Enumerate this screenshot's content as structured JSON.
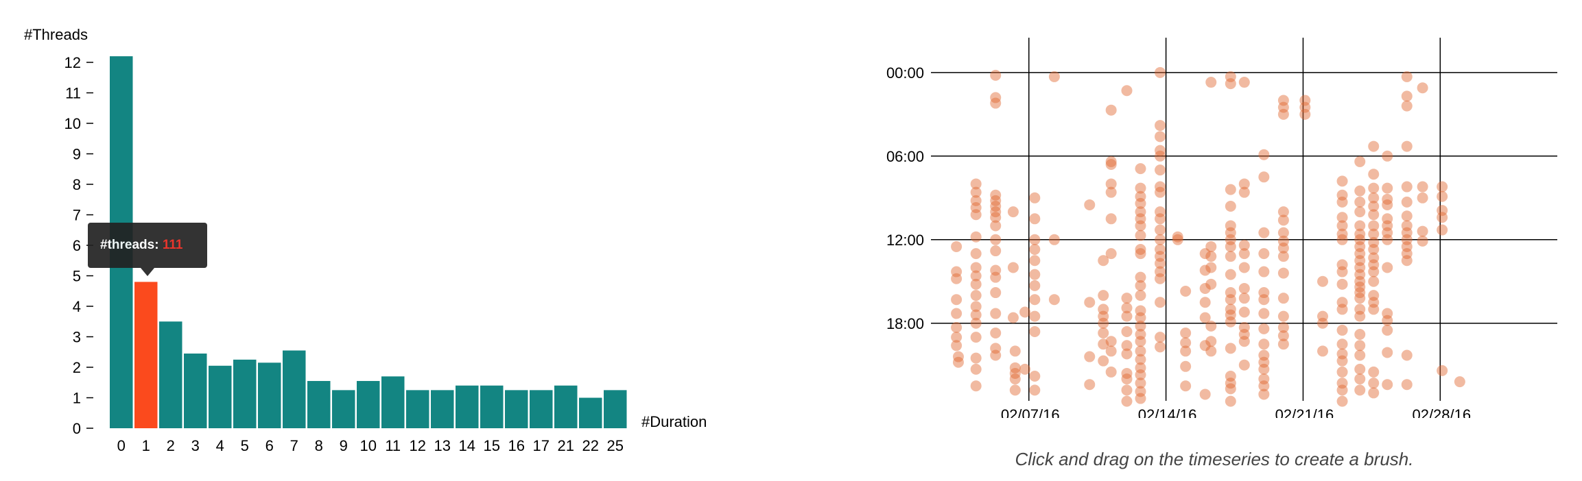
{
  "chart_data": [
    {
      "type": "bar",
      "ylabel": "#Threads",
      "xlabel": "#Duration",
      "categories": [
        "0",
        "1",
        "2",
        "3",
        "4",
        "5",
        "6",
        "7",
        "8",
        "9",
        "10",
        "11",
        "12",
        "13",
        "14",
        "15",
        "16",
        "17",
        "21",
        "22",
        "25"
      ],
      "values": [
        12.2,
        4.8,
        3.5,
        2.45,
        2.05,
        2.25,
        2.15,
        2.55,
        1.55,
        1.25,
        1.55,
        1.7,
        1.25,
        1.25,
        1.4,
        1.4,
        1.25,
        1.25,
        1.4,
        1.0,
        1.25
      ],
      "ylim": [
        0,
        12.5
      ],
      "yticks": [
        "0",
        "1",
        "2",
        "3",
        "4",
        "5",
        "6",
        "7",
        "8",
        "9",
        "10",
        "11",
        "12"
      ],
      "highlight_index": 1,
      "colors": {
        "bar": "#138582",
        "highlight": "#fb4a1d"
      }
    },
    {
      "type": "scatter",
      "xlabel": "",
      "ylabel": "",
      "x_tick_labels": [
        "02/07/16",
        "02/14/16",
        "02/21/16",
        "02/28/16"
      ],
      "y_tick_labels": [
        "00:00",
        "06:00",
        "12:00",
        "18:00"
      ],
      "point_color": "#e0662e",
      "day_range": [
        2,
        30
      ],
      "hour_range": [
        -2.5,
        24
      ],
      "points": [
        [
          3.3,
          12.5
        ],
        [
          3.3,
          14.3
        ],
        [
          3.3,
          14.8
        ],
        [
          3.3,
          16.3
        ],
        [
          3.3,
          17.3
        ],
        [
          3.3,
          18.3
        ],
        [
          3.3,
          19.0
        ],
        [
          3.3,
          19.6
        ],
        [
          3.4,
          20.4
        ],
        [
          3.4,
          20.8
        ],
        [
          4.3,
          8.0
        ],
        [
          4.3,
          8.6
        ],
        [
          4.3,
          9.2
        ],
        [
          4.3,
          9.7
        ],
        [
          4.3,
          10.2
        ],
        [
          4.3,
          11.8
        ],
        [
          4.3,
          13.0
        ],
        [
          4.3,
          14.0
        ],
        [
          4.3,
          14.6
        ],
        [
          4.3,
          15.2
        ],
        [
          4.3,
          16.0
        ],
        [
          4.3,
          16.8
        ],
        [
          4.3,
          17.4
        ],
        [
          4.3,
          18.0
        ],
        [
          4.3,
          19.0
        ],
        [
          4.3,
          20.5
        ],
        [
          4.3,
          21.3
        ],
        [
          4.3,
          22.5
        ],
        [
          5.3,
          0.2
        ],
        [
          5.3,
          1.8
        ],
        [
          5.3,
          2.2
        ],
        [
          5.3,
          8.8
        ],
        [
          5.3,
          9.2
        ],
        [
          5.3,
          9.6
        ],
        [
          5.3,
          10.0
        ],
        [
          5.3,
          10.4
        ],
        [
          5.3,
          11.0
        ],
        [
          5.3,
          12.0
        ],
        [
          5.3,
          12.8
        ],
        [
          5.3,
          14.2
        ],
        [
          5.3,
          14.7
        ],
        [
          5.3,
          15.8
        ],
        [
          5.3,
          17.3
        ],
        [
          5.3,
          18.7
        ],
        [
          5.3,
          19.8
        ],
        [
          5.3,
          20.3
        ],
        [
          6.2,
          10.0
        ],
        [
          6.2,
          14.0
        ],
        [
          6.2,
          17.6
        ],
        [
          6.3,
          20.0
        ],
        [
          6.3,
          21.2
        ],
        [
          6.3,
          21.6
        ],
        [
          6.3,
          22.0
        ],
        [
          6.3,
          22.8
        ],
        [
          6.8,
          17.2
        ],
        [
          6.8,
          21.3
        ],
        [
          7.3,
          9.0
        ],
        [
          7.3,
          10.5
        ],
        [
          7.3,
          12.0
        ],
        [
          7.3,
          12.7
        ],
        [
          7.3,
          13.5
        ],
        [
          7.3,
          14.5
        ],
        [
          7.3,
          15.3
        ],
        [
          7.3,
          16.3
        ],
        [
          7.3,
          17.5
        ],
        [
          7.3,
          18.6
        ],
        [
          7.3,
          21.8
        ],
        [
          7.3,
          22.8
        ],
        [
          8.3,
          0.3
        ],
        [
          8.3,
          12.0
        ],
        [
          8.3,
          16.3
        ],
        [
          10.1,
          9.5
        ],
        [
          10.1,
          16.5
        ],
        [
          10.1,
          20.4
        ],
        [
          10.1,
          22.4
        ],
        [
          10.8,
          13.5
        ],
        [
          10.8,
          16.0
        ],
        [
          10.8,
          17.0
        ],
        [
          10.8,
          17.5
        ],
        [
          10.8,
          18.0
        ],
        [
          10.8,
          18.7
        ],
        [
          10.8,
          19.5
        ],
        [
          10.8,
          20.7
        ],
        [
          11.2,
          2.7
        ],
        [
          11.2,
          6.4
        ],
        [
          11.2,
          6.6
        ],
        [
          11.2,
          8.0
        ],
        [
          11.2,
          8.6
        ],
        [
          11.2,
          10.5
        ],
        [
          11.2,
          13.0
        ],
        [
          11.2,
          19.3
        ],
        [
          11.2,
          20.0
        ],
        [
          11.2,
          21.5
        ],
        [
          12.0,
          1.3
        ],
        [
          12.0,
          16.2
        ],
        [
          12.0,
          16.9
        ],
        [
          12.0,
          17.5
        ],
        [
          12.0,
          18.6
        ],
        [
          12.0,
          19.6
        ],
        [
          12.0,
          20.2
        ],
        [
          12.0,
          21.6
        ],
        [
          12.0,
          22.0
        ],
        [
          12.0,
          22.8
        ],
        [
          12.0,
          23.6
        ],
        [
          12.7,
          6.9
        ],
        [
          12.7,
          8.3
        ],
        [
          12.7,
          8.9
        ],
        [
          12.7,
          9.4
        ],
        [
          12.7,
          10.0
        ],
        [
          12.7,
          10.5
        ],
        [
          12.7,
          11.0
        ],
        [
          12.7,
          11.7
        ],
        [
          12.7,
          12.7
        ],
        [
          12.7,
          13.0
        ],
        [
          12.7,
          14.7
        ],
        [
          12.7,
          15.3
        ],
        [
          12.7,
          16.0
        ],
        [
          12.7,
          17.1
        ],
        [
          12.7,
          17.6
        ],
        [
          12.7,
          18.2
        ],
        [
          12.7,
          18.8
        ],
        [
          12.7,
          19.3
        ],
        [
          12.7,
          20.0
        ],
        [
          12.7,
          20.6
        ],
        [
          12.7,
          21.2
        ],
        [
          12.7,
          21.7
        ],
        [
          12.7,
          22.3
        ],
        [
          12.7,
          22.9
        ],
        [
          12.7,
          23.4
        ],
        [
          13.7,
          0.0
        ],
        [
          13.7,
          3.8
        ],
        [
          13.7,
          4.6
        ],
        [
          13.7,
          5.6
        ],
        [
          13.7,
          6.0
        ],
        [
          13.7,
          7.0
        ],
        [
          13.7,
          8.2
        ],
        [
          13.7,
          8.6
        ],
        [
          13.7,
          10.0
        ],
        [
          13.7,
          10.5
        ],
        [
          13.7,
          11.3
        ],
        [
          13.7,
          12.0
        ],
        [
          13.7,
          12.7
        ],
        [
          13.7,
          13.2
        ],
        [
          13.7,
          13.7
        ],
        [
          13.7,
          14.3
        ],
        [
          13.7,
          14.8
        ],
        [
          13.7,
          16.5
        ],
        [
          13.7,
          19.0
        ],
        [
          13.7,
          19.7
        ],
        [
          14.6,
          11.8
        ],
        [
          14.6,
          12.0
        ],
        [
          15.0,
          15.7
        ],
        [
          15.0,
          18.7
        ],
        [
          15.0,
          19.4
        ],
        [
          15.0,
          20.0
        ],
        [
          15.0,
          21.1
        ],
        [
          15.0,
          22.5
        ],
        [
          16.0,
          13.0
        ],
        [
          16.0,
          14.2
        ],
        [
          16.0,
          15.5
        ],
        [
          16.0,
          16.5
        ],
        [
          16.0,
          17.6
        ],
        [
          16.0,
          19.6
        ],
        [
          16.0,
          23.1
        ],
        [
          16.3,
          0.7
        ],
        [
          16.3,
          12.5
        ],
        [
          16.3,
          13.2
        ],
        [
          16.3,
          14.0
        ],
        [
          16.3,
          15.2
        ],
        [
          16.3,
          18.2
        ],
        [
          16.3,
          19.3
        ],
        [
          16.3,
          20.0
        ],
        [
          17.3,
          0.3
        ],
        [
          17.3,
          0.8
        ],
        [
          17.3,
          8.4
        ],
        [
          17.3,
          9.6
        ],
        [
          17.3,
          11.0
        ],
        [
          17.3,
          11.5
        ],
        [
          17.3,
          12.0
        ],
        [
          17.3,
          12.5
        ],
        [
          17.3,
          13.2
        ],
        [
          17.3,
          14.5
        ],
        [
          17.3,
          15.8
        ],
        [
          17.3,
          16.3
        ],
        [
          17.3,
          17.0
        ],
        [
          17.3,
          17.4
        ],
        [
          17.3,
          17.9
        ],
        [
          17.3,
          19.8
        ],
        [
          17.3,
          21.8
        ],
        [
          17.3,
          22.3
        ],
        [
          17.3,
          22.7
        ],
        [
          17.3,
          23.6
        ],
        [
          18.0,
          0.7
        ],
        [
          18.0,
          8.0
        ],
        [
          18.0,
          8.6
        ],
        [
          18.0,
          12.4
        ],
        [
          18.0,
          13.0
        ],
        [
          18.0,
          14.0
        ],
        [
          18.0,
          15.5
        ],
        [
          18.0,
          16.2
        ],
        [
          18.0,
          17.2
        ],
        [
          18.0,
          18.3
        ],
        [
          18.0,
          18.8
        ],
        [
          18.0,
          19.3
        ],
        [
          18.0,
          21.0
        ],
        [
          19.0,
          5.9
        ],
        [
          19.0,
          7.5
        ],
        [
          19.0,
          11.5
        ],
        [
          19.0,
          13.0
        ],
        [
          19.0,
          14.3
        ],
        [
          19.0,
          15.8
        ],
        [
          19.0,
          16.3
        ],
        [
          19.0,
          17.3
        ],
        [
          19.0,
          18.4
        ],
        [
          19.0,
          19.5
        ],
        [
          19.0,
          20.3
        ],
        [
          19.0,
          20.8
        ],
        [
          19.0,
          21.3
        ],
        [
          19.0,
          22.0
        ],
        [
          19.0,
          22.5
        ],
        [
          19.0,
          23.1
        ],
        [
          20.0,
          2.0
        ],
        [
          20.0,
          2.5
        ],
        [
          20.0,
          3.0
        ],
        [
          20.0,
          10.0
        ],
        [
          20.0,
          10.6
        ],
        [
          20.0,
          11.5
        ],
        [
          20.0,
          12.1
        ],
        [
          20.0,
          12.6
        ],
        [
          20.0,
          13.2
        ],
        [
          20.0,
          14.4
        ],
        [
          20.0,
          16.2
        ],
        [
          20.0,
          17.5
        ],
        [
          20.0,
          18.3
        ],
        [
          20.0,
          18.9
        ],
        [
          20.0,
          19.5
        ],
        [
          21.1,
          2.0
        ],
        [
          21.1,
          2.5
        ],
        [
          21.1,
          3.0
        ],
        [
          22.0,
          15.0
        ],
        [
          22.0,
          17.5
        ],
        [
          22.0,
          18.0
        ],
        [
          22.0,
          20.0
        ],
        [
          23.0,
          7.8
        ],
        [
          23.0,
          8.8
        ],
        [
          23.0,
          9.3
        ],
        [
          23.0,
          10.4
        ],
        [
          23.0,
          11.0
        ],
        [
          23.0,
          11.6
        ],
        [
          23.0,
          12.0
        ],
        [
          23.0,
          13.8
        ],
        [
          23.0,
          14.3
        ],
        [
          23.0,
          15.2
        ],
        [
          23.0,
          16.5
        ],
        [
          23.0,
          17.0
        ],
        [
          23.0,
          18.5
        ],
        [
          23.0,
          19.5
        ],
        [
          23.0,
          20.2
        ],
        [
          23.0,
          20.7
        ],
        [
          23.0,
          21.5
        ],
        [
          23.0,
          22.3
        ],
        [
          23.0,
          22.8
        ],
        [
          23.0,
          23.6
        ],
        [
          23.9,
          6.4
        ],
        [
          23.9,
          8.5
        ],
        [
          23.9,
          9.3
        ],
        [
          23.9,
          10.0
        ],
        [
          23.9,
          11.0
        ],
        [
          23.9,
          11.6
        ],
        [
          23.9,
          12.0
        ],
        [
          23.9,
          12.5
        ],
        [
          23.9,
          13.0
        ],
        [
          23.9,
          13.5
        ],
        [
          23.9,
          14.0
        ],
        [
          23.9,
          14.5
        ],
        [
          23.9,
          15.0
        ],
        [
          23.9,
          15.4
        ],
        [
          23.9,
          15.8
        ],
        [
          23.9,
          16.2
        ],
        [
          23.9,
          17.0
        ],
        [
          23.9,
          17.5
        ],
        [
          23.9,
          18.8
        ],
        [
          23.9,
          19.6
        ],
        [
          23.9,
          20.3
        ],
        [
          23.9,
          21.3
        ],
        [
          23.9,
          22.0
        ],
        [
          23.9,
          22.8
        ],
        [
          24.6,
          5.3
        ],
        [
          24.6,
          7.3
        ],
        [
          24.6,
          8.3
        ],
        [
          24.6,
          9.0
        ],
        [
          24.6,
          9.6
        ],
        [
          24.6,
          10.2
        ],
        [
          24.6,
          11.0
        ],
        [
          24.6,
          11.6
        ],
        [
          24.6,
          12.2
        ],
        [
          24.6,
          12.7
        ],
        [
          24.6,
          13.3
        ],
        [
          24.6,
          13.8
        ],
        [
          24.6,
          14.3
        ],
        [
          24.6,
          15.0
        ],
        [
          24.6,
          16.0
        ],
        [
          24.6,
          16.5
        ],
        [
          24.6,
          17.0
        ],
        [
          24.6,
          21.5
        ],
        [
          24.6,
          22.3
        ],
        [
          24.6,
          23.0
        ],
        [
          25.3,
          6.0
        ],
        [
          25.3,
          8.3
        ],
        [
          25.3,
          9.1
        ],
        [
          25.3,
          9.5
        ],
        [
          25.3,
          10.5
        ],
        [
          25.3,
          11.0
        ],
        [
          25.3,
          11.5
        ],
        [
          25.3,
          12.0
        ],
        [
          25.3,
          14.0
        ],
        [
          25.3,
          17.3
        ],
        [
          25.3,
          17.8
        ],
        [
          25.3,
          18.5
        ],
        [
          25.3,
          20.1
        ],
        [
          25.3,
          22.4
        ],
        [
          26.3,
          0.3
        ],
        [
          26.3,
          1.7
        ],
        [
          26.3,
          2.4
        ],
        [
          26.3,
          5.3
        ],
        [
          26.3,
          8.2
        ],
        [
          26.3,
          9.3
        ],
        [
          26.3,
          10.3
        ],
        [
          26.3,
          11.0
        ],
        [
          26.3,
          11.5
        ],
        [
          26.3,
          12.0
        ],
        [
          26.3,
          12.5
        ],
        [
          26.3,
          13.0
        ],
        [
          26.3,
          13.5
        ],
        [
          26.3,
          20.3
        ],
        [
          26.3,
          22.4
        ],
        [
          27.1,
          1.1
        ],
        [
          27.1,
          8.2
        ],
        [
          27.1,
          9.0
        ],
        [
          27.1,
          11.4
        ],
        [
          27.1,
          12.1
        ],
        [
          28.1,
          8.2
        ],
        [
          28.1,
          8.9
        ],
        [
          28.1,
          9.9
        ],
        [
          28.1,
          10.4
        ],
        [
          28.1,
          11.3
        ],
        [
          28.1,
          21.4
        ],
        [
          29.0,
          22.2
        ]
      ]
    }
  ],
  "tooltip": {
    "label": "#threads:",
    "value": "111"
  },
  "hint": "Click and drag on the timeseries to create a brush."
}
